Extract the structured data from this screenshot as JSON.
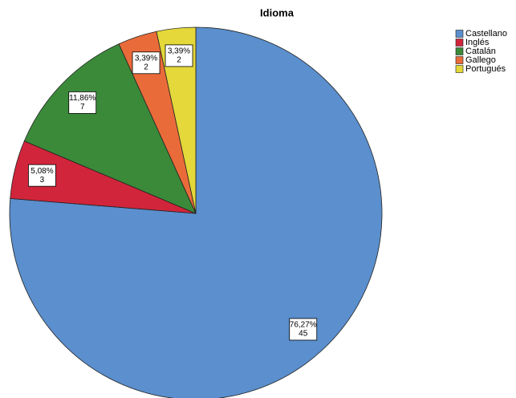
{
  "chart_data": {
    "type": "pie",
    "title": "Idioma",
    "categories": [
      "Castellano",
      "Inglés",
      "Catalán",
      "Gallego",
      "Portugués"
    ],
    "values": [
      76.27,
      5.08,
      11.86,
      3.39,
      3.39
    ],
    "value_labels": [
      "76,27%",
      "5,08%",
      "11,86%",
      "3,39%",
      "3,39%"
    ],
    "counts": [
      45,
      3,
      7,
      2,
      2
    ],
    "colors": [
      "#5b8fcd",
      "#d1253b",
      "#3b8a3a",
      "#ea6b3a",
      "#e4d83a"
    ],
    "legend": "upper right"
  }
}
